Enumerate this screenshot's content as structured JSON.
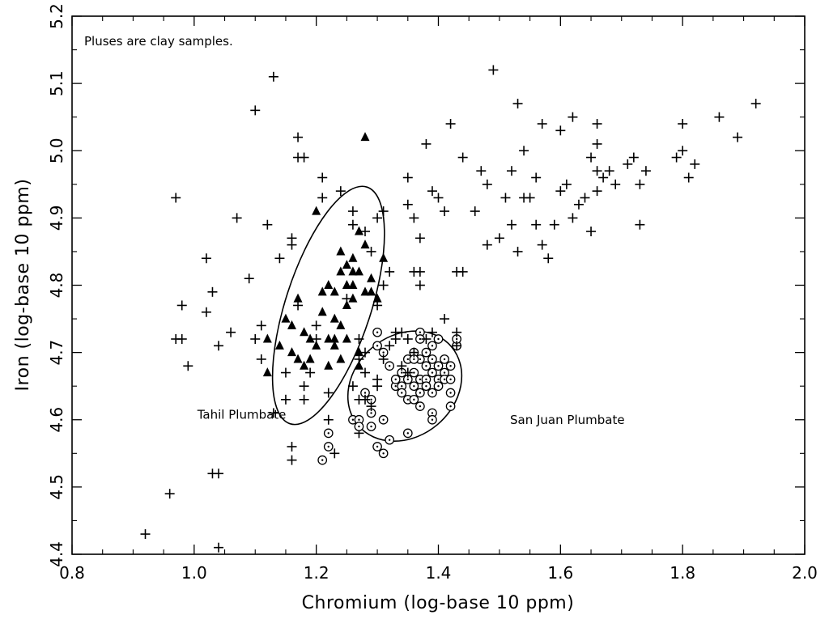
{
  "chart_data": {
    "type": "scatter",
    "title": "",
    "xlabel": "Chromium (log-base 10 ppm)",
    "ylabel": "Iron (log-base 10 ppm)",
    "xlim": [
      0.8,
      2.0
    ],
    "ylim": [
      4.4,
      5.2
    ],
    "xticks": [
      0.8,
      1.0,
      1.2,
      1.4,
      1.6,
      1.8,
      2.0
    ],
    "yticks": [
      4.4,
      4.5,
      4.6,
      4.7,
      4.8,
      4.9,
      5.0,
      5.1,
      5.2
    ],
    "xtick_labels": [
      "0.8",
      "1.0",
      "1.2",
      "1.4",
      "1.6",
      "1.8",
      "2.0"
    ],
    "ytick_labels": [
      "4.4",
      "4.5",
      "4.6",
      "4.7",
      "4.8",
      "4.9",
      "5.0",
      "5.1",
      "5.2"
    ],
    "note": "Pluses are clay samples.",
    "grid": false,
    "series": [
      {
        "marker": "plus",
        "points": [
          [
            0.92,
            4.43
          ],
          [
            0.96,
            4.49
          ],
          [
            0.97,
            4.93
          ],
          [
            0.98,
            4.77
          ],
          [
            0.97,
            4.72
          ],
          [
            0.98,
            4.72
          ],
          [
            0.99,
            4.68
          ],
          [
            1.02,
            4.84
          ],
          [
            1.02,
            4.76
          ],
          [
            1.03,
            4.79
          ],
          [
            1.03,
            4.52
          ],
          [
            1.04,
            4.52
          ],
          [
            1.04,
            4.71
          ],
          [
            1.04,
            4.41
          ],
          [
            1.06,
            4.73
          ],
          [
            1.07,
            4.9
          ],
          [
            1.09,
            4.81
          ],
          [
            1.1,
            5.06
          ],
          [
            1.1,
            4.72
          ],
          [
            1.11,
            4.74
          ],
          [
            1.11,
            4.69
          ],
          [
            1.12,
            4.89
          ],
          [
            1.13,
            5.11
          ],
          [
            1.13,
            4.61
          ],
          [
            1.14,
            4.84
          ],
          [
            1.15,
            4.63
          ],
          [
            1.15,
            4.67
          ],
          [
            1.16,
            4.86
          ],
          [
            1.16,
            4.87
          ],
          [
            1.16,
            4.56
          ],
          [
            1.16,
            4.54
          ],
          [
            1.17,
            5.02
          ],
          [
            1.17,
            4.99
          ],
          [
            1.18,
            4.99
          ],
          [
            1.17,
            4.77
          ],
          [
            1.18,
            4.63
          ],
          [
            1.18,
            4.65
          ],
          [
            1.19,
            4.67
          ],
          [
            1.2,
            4.74
          ],
          [
            1.2,
            4.72
          ],
          [
            1.21,
            4.96
          ],
          [
            1.21,
            4.93
          ],
          [
            1.22,
            4.64
          ],
          [
            1.22,
            4.6
          ],
          [
            1.23,
            4.55
          ],
          [
            1.24,
            4.94
          ],
          [
            1.25,
            4.78
          ],
          [
            1.26,
            4.91
          ],
          [
            1.26,
            4.89
          ],
          [
            1.27,
            4.72
          ],
          [
            1.27,
            4.58
          ],
          [
            1.28,
            4.88
          ],
          [
            1.28,
            4.7
          ],
          [
            1.29,
            4.85
          ],
          [
            1.3,
            4.77
          ],
          [
            1.3,
            4.9
          ],
          [
            1.31,
            4.91
          ],
          [
            1.31,
            4.8
          ],
          [
            1.32,
            4.82
          ],
          [
            1.33,
            4.72
          ],
          [
            1.34,
            4.73
          ],
          [
            1.35,
            4.96
          ],
          [
            1.35,
            4.92
          ],
          [
            1.36,
            4.82
          ],
          [
            1.36,
            4.9
          ],
          [
            1.37,
            4.87
          ],
          [
            1.37,
            4.82
          ],
          [
            1.37,
            4.8
          ],
          [
            1.38,
            5.01
          ],
          [
            1.39,
            4.94
          ],
          [
            1.4,
            4.93
          ],
          [
            1.41,
            4.91
          ],
          [
            1.42,
            5.04
          ],
          [
            1.43,
            4.82
          ],
          [
            1.44,
            4.82
          ],
          [
            1.44,
            4.99
          ],
          [
            1.46,
            4.91
          ],
          [
            1.47,
            4.97
          ],
          [
            1.48,
            4.95
          ],
          [
            1.48,
            4.86
          ],
          [
            1.49,
            5.12
          ],
          [
            1.5,
            4.87
          ],
          [
            1.51,
            4.93
          ],
          [
            1.52,
            4.97
          ],
          [
            1.52,
            4.89
          ],
          [
            1.53,
            5.07
          ],
          [
            1.53,
            4.85
          ],
          [
            1.54,
            4.93
          ],
          [
            1.54,
            5.0
          ],
          [
            1.55,
            4.93
          ],
          [
            1.56,
            4.96
          ],
          [
            1.56,
            4.89
          ],
          [
            1.57,
            5.04
          ],
          [
            1.57,
            4.86
          ],
          [
            1.58,
            4.84
          ],
          [
            1.59,
            4.89
          ],
          [
            1.6,
            4.94
          ],
          [
            1.6,
            5.03
          ],
          [
            1.61,
            4.95
          ],
          [
            1.62,
            4.9
          ],
          [
            1.62,
            5.05
          ],
          [
            1.63,
            4.92
          ],
          [
            1.64,
            4.93
          ],
          [
            1.65,
            4.88
          ],
          [
            1.65,
            4.99
          ],
          [
            1.66,
            5.04
          ],
          [
            1.66,
            5.01
          ],
          [
            1.66,
            4.94
          ],
          [
            1.66,
            4.97
          ],
          [
            1.67,
            4.96
          ],
          [
            1.68,
            4.97
          ],
          [
            1.69,
            4.95
          ],
          [
            1.71,
            4.98
          ],
          [
            1.72,
            4.99
          ],
          [
            1.73,
            4.89
          ],
          [
            1.73,
            4.95
          ],
          [
            1.74,
            4.97
          ],
          [
            1.79,
            4.99
          ],
          [
            1.8,
            5.04
          ],
          [
            1.8,
            5.0
          ],
          [
            1.81,
            4.96
          ],
          [
            1.82,
            4.98
          ],
          [
            1.86,
            5.05
          ],
          [
            1.89,
            5.02
          ],
          [
            1.92,
            5.07
          ]
        ]
      },
      {
        "marker": "filled-triangle",
        "points": [
          [
            1.12,
            4.72
          ],
          [
            1.12,
            4.67
          ],
          [
            1.14,
            4.71
          ],
          [
            1.15,
            4.75
          ],
          [
            1.16,
            4.74
          ],
          [
            1.16,
            4.7
          ],
          [
            1.17,
            4.78
          ],
          [
            1.17,
            4.69
          ],
          [
            1.18,
            4.68
          ],
          [
            1.18,
            4.73
          ],
          [
            1.19,
            4.69
          ],
          [
            1.2,
            4.71
          ],
          [
            1.2,
            4.91
          ],
          [
            1.21,
            4.79
          ],
          [
            1.21,
            4.76
          ],
          [
            1.22,
            4.72
          ],
          [
            1.22,
            4.8
          ],
          [
            1.22,
            4.68
          ],
          [
            1.23,
            4.79
          ],
          [
            1.23,
            4.75
          ],
          [
            1.23,
            4.71
          ],
          [
            1.24,
            4.74
          ],
          [
            1.24,
            4.82
          ],
          [
            1.24,
            4.85
          ],
          [
            1.25,
            4.8
          ],
          [
            1.25,
            4.83
          ],
          [
            1.25,
            4.77
          ],
          [
            1.25,
            4.72
          ],
          [
            1.26,
            4.8
          ],
          [
            1.26,
            4.84
          ],
          [
            1.26,
            4.78
          ],
          [
            1.27,
            4.82
          ],
          [
            1.27,
            4.7
          ],
          [
            1.27,
            4.68
          ],
          [
            1.27,
            4.88
          ],
          [
            1.28,
            5.02
          ],
          [
            1.28,
            4.79
          ],
          [
            1.28,
            4.86
          ],
          [
            1.29,
            4.81
          ],
          [
            1.3,
            4.78
          ],
          [
            1.31,
            4.84
          ],
          [
            1.24,
            4.69
          ],
          [
            1.23,
            4.72
          ],
          [
            1.19,
            4.72
          ],
          [
            1.26,
            4.82
          ],
          [
            1.29,
            4.79
          ]
        ]
      },
      {
        "marker": "dotted-circle",
        "points": [
          [
            1.21,
            4.54
          ],
          [
            1.22,
            4.58
          ],
          [
            1.22,
            4.56
          ],
          [
            1.26,
            4.6
          ],
          [
            1.27,
            4.6
          ],
          [
            1.27,
            4.59
          ],
          [
            1.28,
            4.64
          ],
          [
            1.29,
            4.63
          ],
          [
            1.29,
            4.61
          ],
          [
            1.29,
            4.59
          ],
          [
            1.3,
            4.56
          ],
          [
            1.3,
            4.73
          ],
          [
            1.3,
            4.71
          ],
          [
            1.31,
            4.7
          ],
          [
            1.31,
            4.6
          ],
          [
            1.31,
            4.55
          ],
          [
            1.32,
            4.68
          ],
          [
            1.32,
            4.57
          ],
          [
            1.33,
            4.65
          ],
          [
            1.33,
            4.66
          ],
          [
            1.34,
            4.65
          ],
          [
            1.34,
            4.67
          ],
          [
            1.34,
            4.64
          ],
          [
            1.35,
            4.66
          ],
          [
            1.35,
            4.69
          ],
          [
            1.35,
            4.63
          ],
          [
            1.35,
            4.58
          ],
          [
            1.36,
            4.7
          ],
          [
            1.36,
            4.67
          ],
          [
            1.36,
            4.65
          ],
          [
            1.36,
            4.63
          ],
          [
            1.37,
            4.73
          ],
          [
            1.37,
            4.72
          ],
          [
            1.37,
            4.69
          ],
          [
            1.37,
            4.66
          ],
          [
            1.37,
            4.64
          ],
          [
            1.37,
            4.62
          ],
          [
            1.38,
            4.7
          ],
          [
            1.38,
            4.68
          ],
          [
            1.38,
            4.66
          ],
          [
            1.38,
            4.65
          ],
          [
            1.39,
            4.71
          ],
          [
            1.39,
            4.69
          ],
          [
            1.39,
            4.67
          ],
          [
            1.39,
            4.64
          ],
          [
            1.39,
            4.61
          ],
          [
            1.39,
            4.6
          ],
          [
            1.4,
            4.72
          ],
          [
            1.4,
            4.68
          ],
          [
            1.4,
            4.66
          ],
          [
            1.4,
            4.65
          ],
          [
            1.41,
            4.69
          ],
          [
            1.41,
            4.67
          ],
          [
            1.41,
            4.66
          ],
          [
            1.42,
            4.68
          ],
          [
            1.42,
            4.66
          ],
          [
            1.42,
            4.64
          ],
          [
            1.42,
            4.62
          ],
          [
            1.43,
            4.71
          ],
          [
            1.43,
            4.72
          ],
          [
            1.36,
            4.69
          ]
        ]
      },
      {
        "marker": "plus",
        "points": [
          [
            1.27,
            4.69
          ],
          [
            1.28,
            4.67
          ],
          [
            1.28,
            4.63
          ],
          [
            1.3,
            4.66
          ],
          [
            1.31,
            4.69
          ],
          [
            1.32,
            4.71
          ],
          [
            1.33,
            4.73
          ],
          [
            1.34,
            4.68
          ],
          [
            1.35,
            4.72
          ],
          [
            1.35,
            4.67
          ],
          [
            1.36,
            4.7
          ],
          [
            1.38,
            4.72
          ],
          [
            1.39,
            4.73
          ],
          [
            1.41,
            4.75
          ],
          [
            1.43,
            4.73
          ],
          [
            1.43,
            4.71
          ],
          [
            1.3,
            4.65
          ],
          [
            1.29,
            4.62
          ],
          [
            1.27,
            4.63
          ],
          [
            1.26,
            4.65
          ]
        ]
      }
    ],
    "ellipses": [
      {
        "label": "Tahil Plumbate",
        "cx": 1.22,
        "cy": 4.77,
        "rx": 0.07,
        "ry": 0.185,
        "angle_deg": 18
      },
      {
        "label": "San Juan Plumbate",
        "cx": 1.345,
        "cy": 4.65,
        "rx": 0.1,
        "ry": 0.075,
        "angle_deg": -40
      }
    ]
  }
}
